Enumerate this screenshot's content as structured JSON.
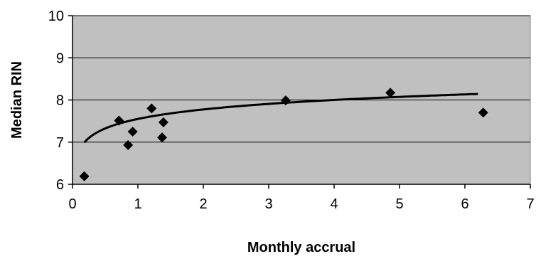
{
  "chart_data": {
    "type": "scatter",
    "title": "",
    "xlabel": "Monthly accrual",
    "ylabel": "Median RIN",
    "xlim": [
      0,
      7
    ],
    "ylim": [
      6,
      10
    ],
    "xticks": [
      0,
      1,
      2,
      3,
      4,
      5,
      6,
      7
    ],
    "yticks": [
      6,
      7,
      8,
      9,
      10
    ],
    "grid": "horizontal",
    "legend": "none",
    "colors": {
      "plot_background": "#c0c0c0",
      "grid": "#000000",
      "marker": "#000000",
      "trendline": "#000000"
    },
    "series": [
      {
        "marker": "diamond",
        "points": [
          {
            "x": 0.18,
            "y": 6.19
          },
          {
            "x": 0.71,
            "y": 7.51
          },
          {
            "x": 0.85,
            "y": 6.93
          },
          {
            "x": 0.92,
            "y": 7.25
          },
          {
            "x": 1.21,
            "y": 7.8
          },
          {
            "x": 1.37,
            "y": 7.11
          },
          {
            "x": 1.39,
            "y": 7.47
          },
          {
            "x": 3.26,
            "y": 7.99
          },
          {
            "x": 4.86,
            "y": 8.17
          },
          {
            "x": 6.28,
            "y": 7.7
          }
        ]
      }
    ],
    "trendline": {
      "type": "logarithmic",
      "x_range": [
        0.18,
        6.2
      ],
      "intercept": 7.55,
      "slope": 0.325
    }
  }
}
